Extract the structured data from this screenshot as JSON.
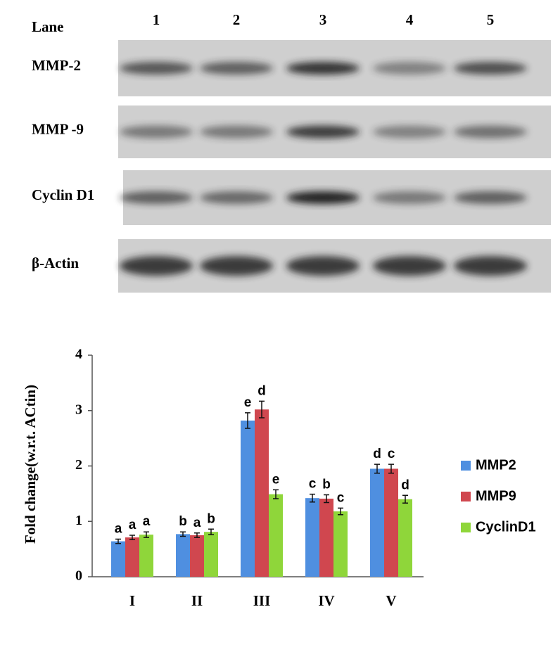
{
  "blot": {
    "lane_label": "Lane",
    "lanes": [
      "1",
      "2",
      "3",
      "4",
      "5"
    ],
    "rows": [
      "MMP-2",
      "MMP -9",
      "Cyclin D1",
      "β-Actin"
    ]
  },
  "chart_data": {
    "type": "bar",
    "ylabel": "Fold change(w.r.t. ACtin)",
    "categories": [
      "I",
      "II",
      "III",
      "IV",
      "V"
    ],
    "series": [
      {
        "name": "MMP2",
        "color": "#4f8fe0",
        "values": [
          0.64,
          0.77,
          2.82,
          1.42,
          1.95
        ],
        "error": [
          0.04,
          0.04,
          0.14,
          0.07,
          0.08
        ],
        "significance": [
          "a",
          "b",
          "e",
          "c",
          "d"
        ]
      },
      {
        "name": "MMP9",
        "color": "#d0474f",
        "values": [
          0.71,
          0.75,
          3.02,
          1.41,
          1.95
        ],
        "error": [
          0.04,
          0.04,
          0.15,
          0.07,
          0.08
        ],
        "significance": [
          "a",
          "a",
          "d",
          "b",
          "c"
        ]
      },
      {
        "name": "CyclinD1",
        "color": "#8fd63a",
        "values": [
          0.76,
          0.81,
          1.49,
          1.18,
          1.4
        ],
        "error": [
          0.05,
          0.05,
          0.08,
          0.06,
          0.07
        ],
        "significance": [
          "a",
          "b",
          "e",
          "c",
          "d"
        ]
      }
    ],
    "ylim": [
      0,
      4
    ],
    "yticks": [
      0,
      1,
      2,
      3,
      4
    ],
    "legend": "right"
  }
}
